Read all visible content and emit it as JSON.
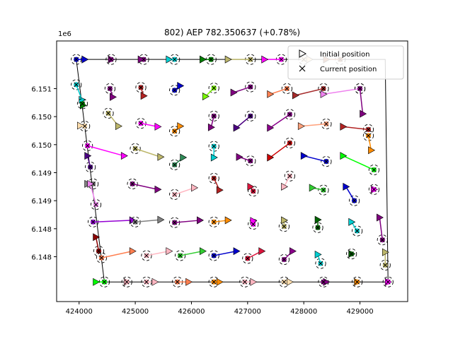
{
  "chart_data": {
    "type": "scatter",
    "title": "802) AEP 782.350637  (+0.78%)",
    "xlabel": "",
    "ylabel": "",
    "y_offset_label": "1e6",
    "xlim": [
      423600,
      429850
    ],
    "ylim": [
      6147200,
      6151850
    ],
    "x_ticks": [
      424000,
      425000,
      426000,
      427000,
      428000,
      429000
    ],
    "x_tick_labels": [
      "424000",
      "425000",
      "426000",
      "427000",
      "428000",
      "429000"
    ],
    "y_ticks": [
      6148000,
      6148500,
      6149000,
      6149500,
      6150000,
      6150500,
      6151000
    ],
    "y_tick_labels": [
      "6.148",
      "6.148",
      "6.149",
      "6.149",
      "6.150",
      "6.150",
      "6.151"
    ],
    "legend": {
      "placement": "top-right",
      "entries": [
        {
          "label": "Initial position",
          "marker": "triangle-right"
        },
        {
          "label": "Current position",
          "marker": "x"
        }
      ]
    },
    "boundary": {
      "color": "#000000",
      "x": [
        423950,
        429450,
        429500,
        424450,
        423950
      ],
      "y": [
        6151520,
        6151520,
        6147550,
        6147550,
        6151520
      ]
    },
    "circle_radius": 90,
    "turbines": [
      {
        "x0": 424100,
        "y0": 6151520,
        "x1": 423950,
        "y1": 6151520,
        "color": "#0000cd"
      },
      {
        "x0": 424570,
        "y0": 6151520,
        "x1": 424570,
        "y1": 6151520,
        "color": "#800080"
      },
      {
        "x0": 425100,
        "y0": 6151520,
        "x1": 425150,
        "y1": 6151520,
        "color": "#800080"
      },
      {
        "x0": 425600,
        "y0": 6151520,
        "x1": 425700,
        "y1": 6151520,
        "color": "#00ced1"
      },
      {
        "x0": 426200,
        "y0": 6151520,
        "x1": 426350,
        "y1": 6151520,
        "color": "#008000"
      },
      {
        "x0": 426650,
        "y0": 6151520,
        "x1": 427050,
        "y1": 6151520,
        "color": "#bdb76b"
      },
      {
        "x0": 427300,
        "y0": 6151520,
        "x1": 427600,
        "y1": 6151520,
        "color": "#ff00ff"
      },
      {
        "x0": 428100,
        "y0": 6151520,
        "x1": 428000,
        "y1": 6151520,
        "color": "#ffdead"
      },
      {
        "x0": 428400,
        "y0": 6151520,
        "x1": 428650,
        "y1": 6151520,
        "color": "#a0522d"
      },
      {
        "x0": 424050,
        "y0": 6150800,
        "x1": 423950,
        "y1": 6151070,
        "color": "#00ced1"
      },
      {
        "x0": 424600,
        "y0": 6150850,
        "x1": 424550,
        "y1": 6151000,
        "color": "#800080"
      },
      {
        "x0": 425150,
        "y0": 6150870,
        "x1": 425100,
        "y1": 6151020,
        "color": "#b22222"
      },
      {
        "x0": 425800,
        "y0": 6151050,
        "x1": 425700,
        "y1": 6150970,
        "color": "#0000cd"
      },
      {
        "x0": 426250,
        "y0": 6150860,
        "x1": 426400,
        "y1": 6151010,
        "color": "#7cfc00"
      },
      {
        "x0": 426750,
        "y0": 6150930,
        "x1": 427050,
        "y1": 6151030,
        "color": "#800080"
      },
      {
        "x0": 427400,
        "y0": 6150900,
        "x1": 427700,
        "y1": 6151000,
        "color": "#ff7f50"
      },
      {
        "x0": 427850,
        "y0": 6150880,
        "x1": 428350,
        "y1": 6151000,
        "color": "#a52a2a"
      },
      {
        "x0": 428350,
        "y0": 6150900,
        "x1": 429000,
        "y1": 6151000,
        "color": "#ee82ee"
      },
      {
        "x0": 429050,
        "y0": 6150550,
        "x1": 429000,
        "y1": 6151000,
        "color": "#800080"
      },
      {
        "x0": 424070,
        "y0": 6150700,
        "x1": 424060,
        "y1": 6150730,
        "color": "#008000"
      },
      {
        "x0": 424700,
        "y0": 6150330,
        "x1": 424520,
        "y1": 6150560,
        "color": "#bdb76b"
      },
      {
        "x0": 425400,
        "y0": 6150320,
        "x1": 425100,
        "y1": 6150380,
        "color": "#ff00ff"
      },
      {
        "x0": 425800,
        "y0": 6150330,
        "x1": 425700,
        "y1": 6150240,
        "color": "#ff8c00"
      },
      {
        "x0": 426350,
        "y0": 6150310,
        "x1": 426400,
        "y1": 6150510,
        "color": "#800080"
      },
      {
        "x0": 426800,
        "y0": 6150300,
        "x1": 427050,
        "y1": 6150510,
        "color": "#4b0082"
      },
      {
        "x0": 427400,
        "y0": 6150300,
        "x1": 427750,
        "y1": 6150540,
        "color": "#8b008b"
      },
      {
        "x0": 427950,
        "y0": 6150330,
        "x1": 428400,
        "y1": 6150370,
        "color": "#ffa07a"
      },
      {
        "x0": 428700,
        "y0": 6150320,
        "x1": 429150,
        "y1": 6150270,
        "color": "#b22222"
      },
      {
        "x0": 424020,
        "y0": 6150340,
        "x1": 424100,
        "y1": 6150330,
        "color": "#ffdead"
      },
      {
        "x0": 424800,
        "y0": 6149800,
        "x1": 424150,
        "y1": 6149980,
        "color": "#ff00ff"
      },
      {
        "x0": 425450,
        "y0": 6149780,
        "x1": 425000,
        "y1": 6149930,
        "color": "#bdb76b"
      },
      {
        "x0": 425850,
        "y0": 6149770,
        "x1": 425700,
        "y1": 6149640,
        "color": "#2e8b57"
      },
      {
        "x0": 426400,
        "y0": 6149770,
        "x1": 426400,
        "y1": 6149970,
        "color": "#00ced1"
      },
      {
        "x0": 426850,
        "y0": 6149780,
        "x1": 427050,
        "y1": 6149710,
        "color": "#800080"
      },
      {
        "x0": 427400,
        "y0": 6149770,
        "x1": 427750,
        "y1": 6150030,
        "color": "#cd0000"
      },
      {
        "x0": 428000,
        "y0": 6149800,
        "x1": 428400,
        "y1": 6149700,
        "color": "#0000cd"
      },
      {
        "x0": 428700,
        "y0": 6149800,
        "x1": 429250,
        "y1": 6149550,
        "color": "#00ff00"
      },
      {
        "x0": 429200,
        "y0": 6149900,
        "x1": 429150,
        "y1": 6150160,
        "color": "#ff8c00"
      },
      {
        "x0": 424150,
        "y0": 6149800,
        "x1": 424200,
        "y1": 6149600,
        "color": "#4b0082"
      },
      {
        "x0": 424150,
        "y0": 6149300,
        "x1": 424250,
        "y1": 6149300,
        "color": "#808080"
      },
      {
        "x0": 425400,
        "y0": 6149200,
        "x1": 424950,
        "y1": 6149300,
        "color": "#800080"
      },
      {
        "x0": 426050,
        "y0": 6149230,
        "x1": 425700,
        "y1": 6149110,
        "color": "#ffb6c1"
      },
      {
        "x0": 426500,
        "y0": 6149190,
        "x1": 426400,
        "y1": 6149400,
        "color": "#b22222"
      },
      {
        "x0": 427050,
        "y0": 6149250,
        "x1": 427100,
        "y1": 6149170,
        "color": "#dc143c"
      },
      {
        "x0": 427650,
        "y0": 6149250,
        "x1": 427750,
        "y1": 6149440,
        "color": "#ffb6c1"
      },
      {
        "x0": 428150,
        "y0": 6149230,
        "x1": 428350,
        "y1": 6149190,
        "color": "#32cd32"
      },
      {
        "x0": 428750,
        "y0": 6149250,
        "x1": 428900,
        "y1": 6149000,
        "color": "#0000cd"
      },
      {
        "x0": 429250,
        "y0": 6149200,
        "x1": 429250,
        "y1": 6149200,
        "color": "#ff00ff"
      },
      {
        "x0": 424200,
        "y0": 6149300,
        "x1": 424300,
        "y1": 6148930,
        "color": "#ee82ee"
      },
      {
        "x0": 424950,
        "y0": 6148650,
        "x1": 424250,
        "y1": 6148620,
        "color": "#9400d3"
      },
      {
        "x0": 425450,
        "y0": 6148660,
        "x1": 425000,
        "y1": 6148620,
        "color": "#808080"
      },
      {
        "x0": 426150,
        "y0": 6148650,
        "x1": 425700,
        "y1": 6148610,
        "color": "#800080"
      },
      {
        "x0": 426650,
        "y0": 6148650,
        "x1": 426400,
        "y1": 6148620,
        "color": "#ff8c00"
      },
      {
        "x0": 427100,
        "y0": 6148640,
        "x1": 427100,
        "y1": 6148580,
        "color": "#ff00ff"
      },
      {
        "x0": 427650,
        "y0": 6148650,
        "x1": 427650,
        "y1": 6148540,
        "color": "#bdb76b"
      },
      {
        "x0": 428250,
        "y0": 6148660,
        "x1": 428250,
        "y1": 6148520,
        "color": "#006400"
      },
      {
        "x0": 428850,
        "y0": 6148620,
        "x1": 428950,
        "y1": 6148460,
        "color": "#00ced1"
      },
      {
        "x0": 429350,
        "y0": 6148700,
        "x1": 429400,
        "y1": 6148300,
        "color": "#800080"
      },
      {
        "x0": 424300,
        "y0": 6148350,
        "x1": 424350,
        "y1": 6148100,
        "color": "#8b0000"
      },
      {
        "x0": 424950,
        "y0": 6148100,
        "x1": 424400,
        "y1": 6147980,
        "color": "#ff7f50"
      },
      {
        "x0": 425600,
        "y0": 6148100,
        "x1": 425200,
        "y1": 6148020,
        "color": "#ffb6c1"
      },
      {
        "x0": 426200,
        "y0": 6148100,
        "x1": 425800,
        "y1": 6148020,
        "color": "#32cd32"
      },
      {
        "x0": 426800,
        "y0": 6148100,
        "x1": 426400,
        "y1": 6148020,
        "color": "#0000cd"
      },
      {
        "x0": 427250,
        "y0": 6148100,
        "x1": 427000,
        "y1": 6147970,
        "color": "#dc143c"
      },
      {
        "x0": 427800,
        "y0": 6148100,
        "x1": 427650,
        "y1": 6147950,
        "color": "#8b008b"
      },
      {
        "x0": 428250,
        "y0": 6148040,
        "x1": 428300,
        "y1": 6147880,
        "color": "#00ced1"
      },
      {
        "x0": 428850,
        "y0": 6148050,
        "x1": 428850,
        "y1": 6148050,
        "color": "#006400"
      },
      {
        "x0": 429450,
        "y0": 6148080,
        "x1": 429450,
        "y1": 6147850,
        "color": "#bdb76b"
      },
      {
        "x0": 424300,
        "y0": 6147550,
        "x1": 424450,
        "y1": 6147550,
        "color": "#00ff00"
      },
      {
        "x0": 424850,
        "y0": 6147550,
        "x1": 424850,
        "y1": 6147550,
        "color": "#ffb6c1"
      },
      {
        "x0": 425350,
        "y0": 6147550,
        "x1": 425200,
        "y1": 6147550,
        "color": "#ffb6c1"
      },
      {
        "x0": 425950,
        "y0": 6147550,
        "x1": 425750,
        "y1": 6147550,
        "color": "#ff7f50"
      },
      {
        "x0": 426500,
        "y0": 6147550,
        "x1": 426400,
        "y1": 6147550,
        "color": "#ff8c00"
      },
      {
        "x0": 427100,
        "y0": 6147550,
        "x1": 426950,
        "y1": 6147550,
        "color": "#ffb6c1"
      },
      {
        "x0": 427750,
        "y0": 6147550,
        "x1": 427650,
        "y1": 6147550,
        "color": "#ffdead"
      },
      {
        "x0": 428400,
        "y0": 6147550,
        "x1": 428350,
        "y1": 6147550,
        "color": "#800080"
      },
      {
        "x0": 428950,
        "y0": 6147550,
        "x1": 428950,
        "y1": 6147550,
        "color": "#ff8c00"
      },
      {
        "x0": 429500,
        "y0": 6147550,
        "x1": 429500,
        "y1": 6147550,
        "color": "#ff00ff"
      }
    ]
  }
}
